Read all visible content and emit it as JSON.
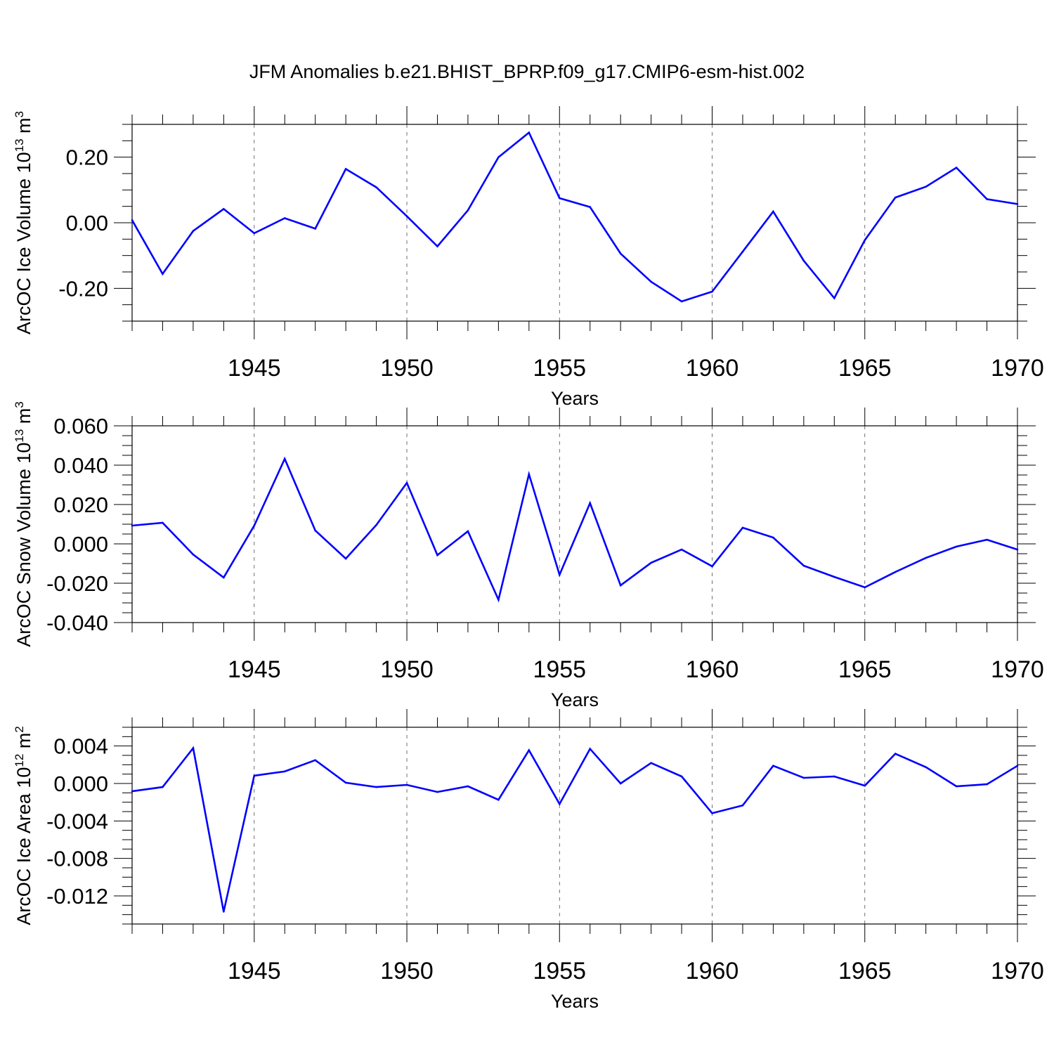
{
  "title": "JFM Anomalies b.e21.BHIST_BPRP.f09_g17.CMIP6-esm-hist.002",
  "line_color": "#0000ff",
  "chart_data": [
    {
      "type": "line",
      "ylabel_main": "ArcOC Ice Volume 10",
      "ylabel_exp": "13",
      "ylabel_unit": " m",
      "ylabel_unit_exp": "3",
      "xlabel": "Years",
      "xlim": [
        1941,
        1970
      ],
      "ylim": [
        -0.3,
        0.3
      ],
      "yticks": [
        -0.2,
        0.0,
        0.2
      ],
      "ytick_labels": [
        "-0.20",
        "0.00",
        "0.20"
      ],
      "xticks": [
        1945,
        1950,
        1955,
        1960,
        1965,
        1970
      ],
      "xtick_labels": [
        "1945",
        "1950",
        "1955",
        "1960",
        "1965",
        "1970"
      ],
      "grid": "dashed vertical at x ticks",
      "x": [
        1941,
        1942,
        1943,
        1944,
        1945,
        1946,
        1947,
        1948,
        1949,
        1950,
        1951,
        1952,
        1953,
        1954,
        1955,
        1956,
        1957,
        1958,
        1959,
        1960,
        1961,
        1962,
        1963,
        1964,
        1965,
        1966,
        1967,
        1968,
        1969,
        1970
      ],
      "values": [
        0.008,
        -0.156,
        -0.025,
        0.042,
        -0.032,
        0.014,
        -0.018,
        0.164,
        0.108,
        0.02,
        -0.072,
        0.038,
        0.2,
        0.275,
        0.075,
        0.048,
        -0.094,
        -0.18,
        -0.24,
        -0.21,
        -0.088,
        0.034,
        -0.116,
        -0.23,
        -0.053,
        0.077,
        0.11,
        0.168,
        0.072,
        0.057
      ]
    },
    {
      "type": "line",
      "ylabel_main": "ArcOC Snow Volume 10",
      "ylabel_exp": "13",
      "ylabel_unit": " m",
      "ylabel_unit_exp": "3",
      "xlabel": "Years",
      "xlim": [
        1941,
        1970
      ],
      "ylim": [
        -0.04,
        0.06
      ],
      "yticks": [
        -0.04,
        -0.02,
        0.0,
        0.02,
        0.04,
        0.06
      ],
      "ytick_labels": [
        "-0.040",
        "-0.020",
        "0.000",
        "0.020",
        "0.040",
        "0.060"
      ],
      "xticks": [
        1945,
        1950,
        1955,
        1960,
        1965,
        1970
      ],
      "xtick_labels": [
        "1945",
        "1950",
        "1955",
        "1960",
        "1965",
        "1970"
      ],
      "grid": "dashed vertical at x ticks",
      "x": [
        1941,
        1942,
        1943,
        1944,
        1945,
        1946,
        1947,
        1948,
        1949,
        1950,
        1951,
        1952,
        1953,
        1954,
        1955,
        1956,
        1957,
        1958,
        1959,
        1960,
        1961,
        1962,
        1963,
        1964,
        1965,
        1966,
        1967,
        1968,
        1969,
        1970
      ],
      "values": [
        0.0093,
        0.0107,
        -0.0054,
        -0.0171,
        0.0093,
        0.0432,
        0.0068,
        -0.0075,
        0.0096,
        0.031,
        -0.0057,
        0.0064,
        -0.0284,
        0.0354,
        -0.0157,
        0.0207,
        -0.0211,
        -0.0096,
        -0.0029,
        -0.0114,
        0.0082,
        0.0032,
        -0.0111,
        -0.0168,
        -0.0221,
        -0.0143,
        -0.0071,
        -0.0014,
        0.0021,
        -0.0029
      ]
    },
    {
      "type": "line",
      "ylabel_main": "ArcOC Ice Area 10",
      "ylabel_exp": "12",
      "ylabel_unit": " m",
      "ylabel_unit_exp": "2",
      "xlabel": "Years",
      "xlim": [
        1941,
        1970
      ],
      "ylim": [
        -0.015,
        0.006
      ],
      "yticks": [
        -0.012,
        -0.008,
        -0.004,
        0.0,
        0.004
      ],
      "ytick_labels": [
        "-0.012",
        "-0.008",
        "-0.004",
        "0.000",
        "0.004"
      ],
      "xticks": [
        1945,
        1950,
        1955,
        1960,
        1965,
        1970
      ],
      "xtick_labels": [
        "1945",
        "1950",
        "1955",
        "1960",
        "1965",
        "1970"
      ],
      "grid": "dashed vertical at x ticks",
      "x": [
        1941,
        1942,
        1943,
        1944,
        1945,
        1946,
        1947,
        1948,
        1949,
        1950,
        1951,
        1952,
        1953,
        1954,
        1955,
        1956,
        1957,
        1958,
        1959,
        1960,
        1961,
        1962,
        1963,
        1964,
        1965,
        1966,
        1967,
        1968,
        1969,
        1970
      ],
      "values": [
        -0.00083,
        -0.00038,
        0.00377,
        -0.01368,
        0.00083,
        0.00128,
        0.00249,
        8e-05,
        -0.00038,
        -0.00015,
        -0.00091,
        -0.0003,
        -0.00174,
        0.00355,
        -0.00219,
        0.0037,
        0.0,
        0.00219,
        0.00075,
        -0.00317,
        -0.00234,
        0.00189,
        0.0006,
        0.00075,
        -0.00023,
        0.00317,
        0.00174,
        -0.0003,
        -8e-05,
        0.00189
      ]
    }
  ]
}
